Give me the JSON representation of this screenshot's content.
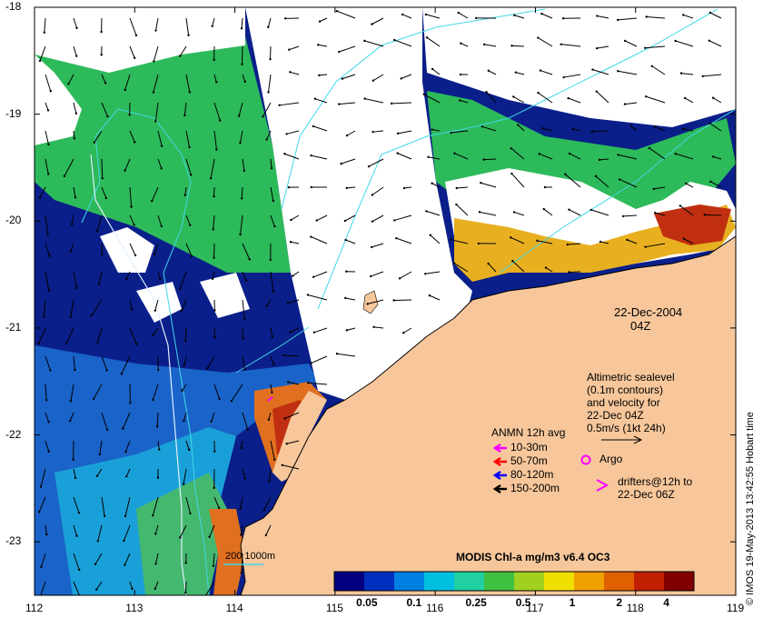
{
  "map": {
    "date_label": "22-Dec-2004",
    "time_label": "04Z",
    "x_ticks": [
      "112",
      "113",
      "114",
      "115",
      "116",
      "117",
      "118",
      "119"
    ],
    "y_ticks": [
      "-18",
      "-19",
      "-20",
      "-21",
      "-22",
      "-23"
    ],
    "x_range": [
      112,
      119
    ],
    "y_range": [
      -18,
      -23.5
    ],
    "colors": {
      "land": "#f7c79b",
      "ocean_deep": "#0a1f8a",
      "low_chl": "#1aa0d8",
      "mid_chl": "#2dba5a",
      "high_chl": "#e8b020",
      "very_high_chl": "#c03010",
      "cloud": "#ffffff",
      "contour": "#40d8e8",
      "isobath": "#e0f0ff"
    }
  },
  "legend": {
    "altimetry_lines": [
      "Altimetric sealevel",
      "(0.1m contours)",
      "and velocity for",
      "22-Dec 04Z",
      "0.5m/s (1kt 24h)"
    ],
    "anmn_title": "ANMN 12h avg",
    "anmn_items": [
      {
        "label": "10-30m",
        "color": "#ff00ff"
      },
      {
        "label": "50-70m",
        "color": "#ff0000"
      },
      {
        "label": "80-120m",
        "color": "#0000ff"
      },
      {
        "label": "150-200m",
        "color": "#000000"
      }
    ],
    "argo_label": "Argo",
    "drifters_lines": [
      "drifters@12h to",
      "22-Dec 06Z"
    ],
    "bathy_label": "200  1000m",
    "colorbar_title": "MODIS Chl-a mg/m3 v6.4 OC3",
    "colorbar_ticks": [
      "0.05",
      "0.1",
      "0.25",
      "0.5",
      "1",
      "2",
      "4"
    ],
    "colorbar_colors": [
      "#000080",
      "#0030c0",
      "#0080e0",
      "#00c0e0",
      "#20d0a0",
      "#40c040",
      "#a0d020",
      "#f0e000",
      "#f0a000",
      "#e06000",
      "#c02000",
      "#800000"
    ]
  },
  "credit": "© IMOS 19-May-2013 13:42:55 Hobart time"
}
